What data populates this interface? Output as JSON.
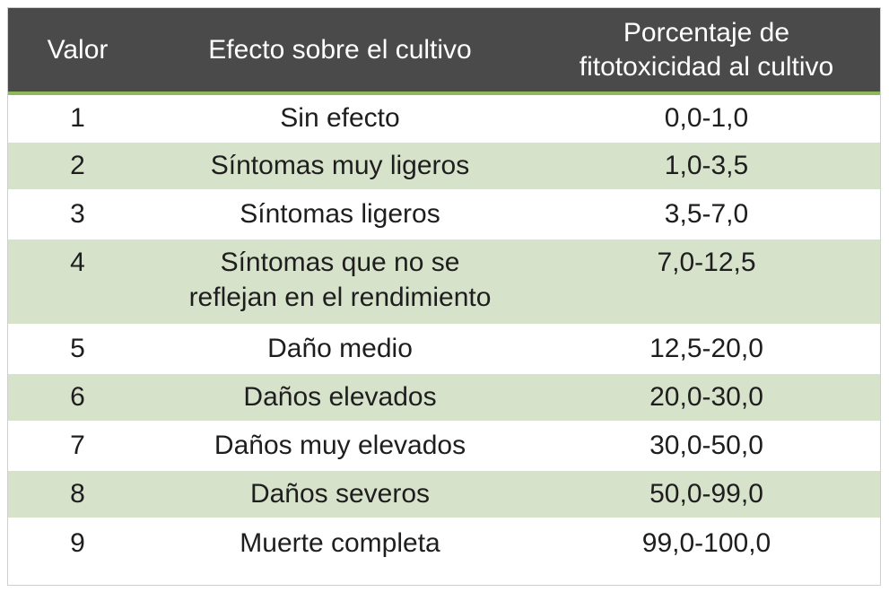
{
  "table": {
    "headers": [
      "Valor",
      "Efecto sobre el cultivo",
      "Porcentaje de\nfitotoxicidad al cultivo"
    ],
    "rows": [
      {
        "valor": "1",
        "efecto": "Sin efecto",
        "porcentaje": "0,0-1,0"
      },
      {
        "valor": "2",
        "efecto": "Síntomas muy ligeros",
        "porcentaje": "1,0-3,5"
      },
      {
        "valor": "3",
        "efecto": "Síntomas ligeros",
        "porcentaje": "3,5-7,0"
      },
      {
        "valor": "4",
        "efecto": "Síntomas que no se reflejan en el rendimiento",
        "porcentaje": "7,0-12,5"
      },
      {
        "valor": "5",
        "efecto": "Daño medio",
        "porcentaje": "12,5-20,0"
      },
      {
        "valor": "6",
        "efecto": "Daños elevados",
        "porcentaje": "20,0-30,0"
      },
      {
        "valor": "7",
        "efecto": "Daños muy elevados",
        "porcentaje": "30,0-50,0"
      },
      {
        "valor": "8",
        "efecto": "Daños severos",
        "porcentaje": "50,0-99,0"
      },
      {
        "valor": "9",
        "efecto": "Muerte completa",
        "porcentaje": "99,0-100,0"
      }
    ]
  },
  "colors": {
    "header_bg": "#4a4a4a",
    "header_rule": "#8fb85c",
    "row_alt": "#d7e2cb",
    "row_base": "#ffffff",
    "text": "#1e1e1e"
  }
}
